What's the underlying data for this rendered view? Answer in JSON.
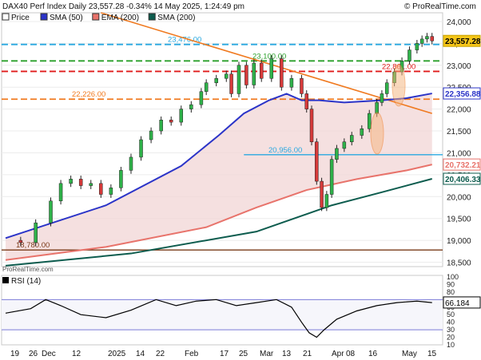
{
  "header": {
    "title": "DAX40 Perf Index Daily 23,557.28 -0.34% 14 May 2025, 1:24:49 pm",
    "watermark": "© ProRealTime.com",
    "footer_source": "ProRealTime.com",
    "legend": [
      {
        "label": "Price",
        "color": "#ffffff"
      },
      {
        "label": "SMA (50)",
        "color": "#2b34c8"
      },
      {
        "label": "EMA (200)",
        "color": "#e8736b"
      },
      {
        "label": "SMA (200)",
        "color": "#0d5c4e"
      }
    ]
  },
  "chart_data": {
    "type": "line",
    "title": "DAX40 Perf Index Daily",
    "y_axis": {
      "ticks": [
        18500,
        19000,
        19500,
        20000,
        20500,
        21000,
        21500,
        22000,
        22500,
        23000,
        23500,
        24000
      ],
      "tick_labels": [
        "18,500",
        "19,000",
        "19,500",
        "20,000",
        "20,500",
        "21,000",
        "21,500",
        "22,000",
        "22,500",
        "23,000",
        "23,500",
        "24,000"
      ],
      "range": [
        18400,
        24200
      ]
    },
    "x_axis": {
      "tick_labels": [
        "19",
        "26",
        "Dec",
        "12",
        "2025",
        "14",
        "22",
        "Feb",
        "17",
        "25",
        "Mar",
        "13",
        "21",
        "Apr",
        "08",
        "16",
        "May",
        "15"
      ]
    },
    "price_points": [
      [
        0,
        19000
      ],
      [
        6,
        18950
      ],
      [
        12,
        19400
      ],
      [
        18,
        19900
      ],
      [
        22,
        20300
      ],
      [
        26,
        20400
      ],
      [
        30,
        20250
      ],
      [
        34,
        20300
      ],
      [
        38,
        20050
      ],
      [
        42,
        20200
      ],
      [
        46,
        20600
      ],
      [
        50,
        20900
      ],
      [
        54,
        21300
      ],
      [
        58,
        21500
      ],
      [
        62,
        21750
      ],
      [
        66,
        21700
      ],
      [
        70,
        22000
      ],
      [
        74,
        22100
      ],
      [
        78,
        22400
      ],
      [
        80,
        22600
      ],
      [
        84,
        22700
      ],
      [
        88,
        22800
      ],
      [
        90,
        22350
      ],
      [
        93,
        23000
      ],
      [
        96,
        22550
      ],
      [
        99,
        23050
      ],
      [
        102,
        22700
      ],
      [
        106,
        23150
      ],
      [
        110,
        22500
      ],
      [
        114,
        22700
      ],
      [
        118,
        22350
      ],
      [
        120,
        22000
      ],
      [
        122,
        21250
      ],
      [
        124,
        20350
      ],
      [
        126,
        19750
      ],
      [
        128,
        20050
      ],
      [
        130,
        20850
      ],
      [
        132,
        21100
      ],
      [
        135,
        21250
      ],
      [
        138,
        21400
      ],
      [
        142,
        21550
      ],
      [
        145,
        21900
      ],
      [
        148,
        22150
      ],
      [
        150,
        22350
      ],
      [
        152,
        22600
      ],
      [
        155,
        22850
      ],
      [
        158,
        23100
      ],
      [
        161,
        23350
      ],
      [
        164,
        23500
      ],
      [
        166,
        23600
      ],
      [
        168,
        23660
      ],
      [
        170,
        23557
      ]
    ],
    "series": [
      {
        "name": "SMA (50)",
        "color": "#2b34c8",
        "points": [
          [
            0,
            19050
          ],
          [
            40,
            19800
          ],
          [
            70,
            20700
          ],
          [
            85,
            21400
          ],
          [
            95,
            21900
          ],
          [
            105,
            22200
          ],
          [
            112,
            22350
          ],
          [
            118,
            22200
          ],
          [
            125,
            22200
          ],
          [
            135,
            22150
          ],
          [
            150,
            22200
          ],
          [
            160,
            22250
          ],
          [
            170,
            22357
          ]
        ]
      },
      {
        "name": "EMA (200)",
        "color": "#e8736b",
        "points": [
          [
            0,
            18550
          ],
          [
            40,
            18850
          ],
          [
            80,
            19300
          ],
          [
            100,
            19750
          ],
          [
            120,
            20150
          ],
          [
            140,
            20400
          ],
          [
            160,
            20600
          ],
          [
            170,
            20732
          ]
        ]
      },
      {
        "name": "SMA (200)",
        "color": "#0d5c4e",
        "points": [
          [
            0,
            18420
          ],
          [
            50,
            18700
          ],
          [
            100,
            19200
          ],
          [
            130,
            19800
          ],
          [
            150,
            20100
          ],
          [
            170,
            20406
          ]
        ]
      }
    ],
    "last_price_labels": [
      {
        "text": "23,557.28",
        "value": 23557.28,
        "bg": "#f5c518",
        "color": "#000000"
      },
      {
        "text": "22,356.88",
        "value": 22356.88,
        "bg": "#ffffff",
        "color": "#2b34c8"
      },
      {
        "text": "20,732.21",
        "value": 20732.21,
        "bg": "#ffffff",
        "color": "#e8736b"
      },
      {
        "text": "20,406.33",
        "value": 20406.33,
        "bg": "#ffffff",
        "color": "#0d5c4e"
      }
    ],
    "horizontal_levels": [
      {
        "label": "23,476.00",
        "value": 23476,
        "color": "#29a8e0",
        "dash": true
      },
      {
        "label": "23,100.00",
        "value": 23100,
        "color": "#2aa02a",
        "dash": true
      },
      {
        "label": "22,861.00",
        "value": 22861,
        "color": "#e01b1b",
        "dash": true
      },
      {
        "label": "22,226.00",
        "value": 22226,
        "color": "#f07a20",
        "dash": true
      },
      {
        "label": "20,956.00",
        "value": 20956,
        "color": "#29a8e0",
        "dash": false
      },
      {
        "label": "18,780.00",
        "value": 18780,
        "color": "#7a3b1a",
        "dash": false
      }
    ],
    "trendline": {
      "color": "#f07a20",
      "from": [
        38,
        24200
      ],
      "to": [
        170,
        21900
      ]
    },
    "rsi": {
      "label": "RSI (14)",
      "value_label": "66.184",
      "ticks": [
        10,
        20,
        30,
        40,
        50,
        60,
        70,
        80,
        90,
        100
      ],
      "bands": [
        30,
        70
      ],
      "points": [
        [
          0,
          52
        ],
        [
          10,
          58
        ],
        [
          16,
          70
        ],
        [
          22,
          62
        ],
        [
          30,
          50
        ],
        [
          40,
          46
        ],
        [
          50,
          56
        ],
        [
          60,
          70
        ],
        [
          68,
          62
        ],
        [
          76,
          68
        ],
        [
          84,
          70
        ],
        [
          92,
          62
        ],
        [
          100,
          66
        ],
        [
          108,
          70
        ],
        [
          114,
          60
        ],
        [
          118,
          40
        ],
        [
          121,
          26
        ],
        [
          124,
          20
        ],
        [
          127,
          30
        ],
        [
          132,
          44
        ],
        [
          140,
          55
        ],
        [
          148,
          62
        ],
        [
          156,
          66
        ],
        [
          164,
          68
        ],
        [
          170,
          66
        ]
      ]
    }
  }
}
